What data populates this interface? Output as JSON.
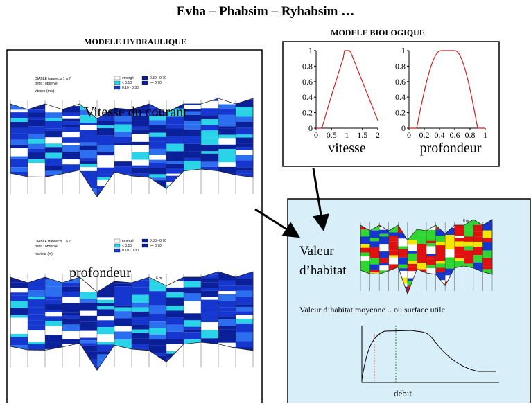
{
  "header": {
    "title": "Evha – Phabsim – Ryhabsim …"
  },
  "hydraulic": {
    "title": "MODELE HYDRAULIQUE",
    "velocity": {
      "caption": "DIABLE transects 1 à 7",
      "flow": "débit : observé",
      "unit": "vitesse (m/s)",
      "legend": [
        "émergé",
        "< 0.10",
        "0.10 - 0.30",
        "0.30 - 0.70",
        ">= 0.70"
      ],
      "scale": "6 m",
      "label": "Vitesse du courant"
    },
    "depth": {
      "caption": "DIABLE transects 1 à 7",
      "flow": "débit : observé",
      "unit": "hauteur (m)",
      "legend": [
        "émergé",
        "< 0.10",
        "0.10 - 0.30",
        "0.30 - 0.70",
        ">= 0.70"
      ],
      "scale": "6 m",
      "label": "profondeur"
    }
  },
  "biological": {
    "title": "MODELE BIOLOGIQUE",
    "charts": [
      {
        "yticks": [
          0,
          0.2,
          0.4,
          0.6,
          0.8,
          1
        ],
        "xticks": [
          0,
          0.5,
          1,
          1.5,
          2
        ],
        "label": "vitesse"
      },
      {
        "yticks": [
          0,
          0.2,
          0.4,
          0.6,
          0.8,
          1
        ],
        "xticks": [
          0,
          0.2,
          0.4,
          0.6,
          0.8,
          1
        ],
        "label": "profondeur"
      }
    ]
  },
  "habitat": {
    "label_line1": "Valeur",
    "label_line2": "d’habitat",
    "scale": "6 m",
    "curve_title": "Valeur d’habitat moyenne .. ou surface utile",
    "x_label": "débit"
  }
}
